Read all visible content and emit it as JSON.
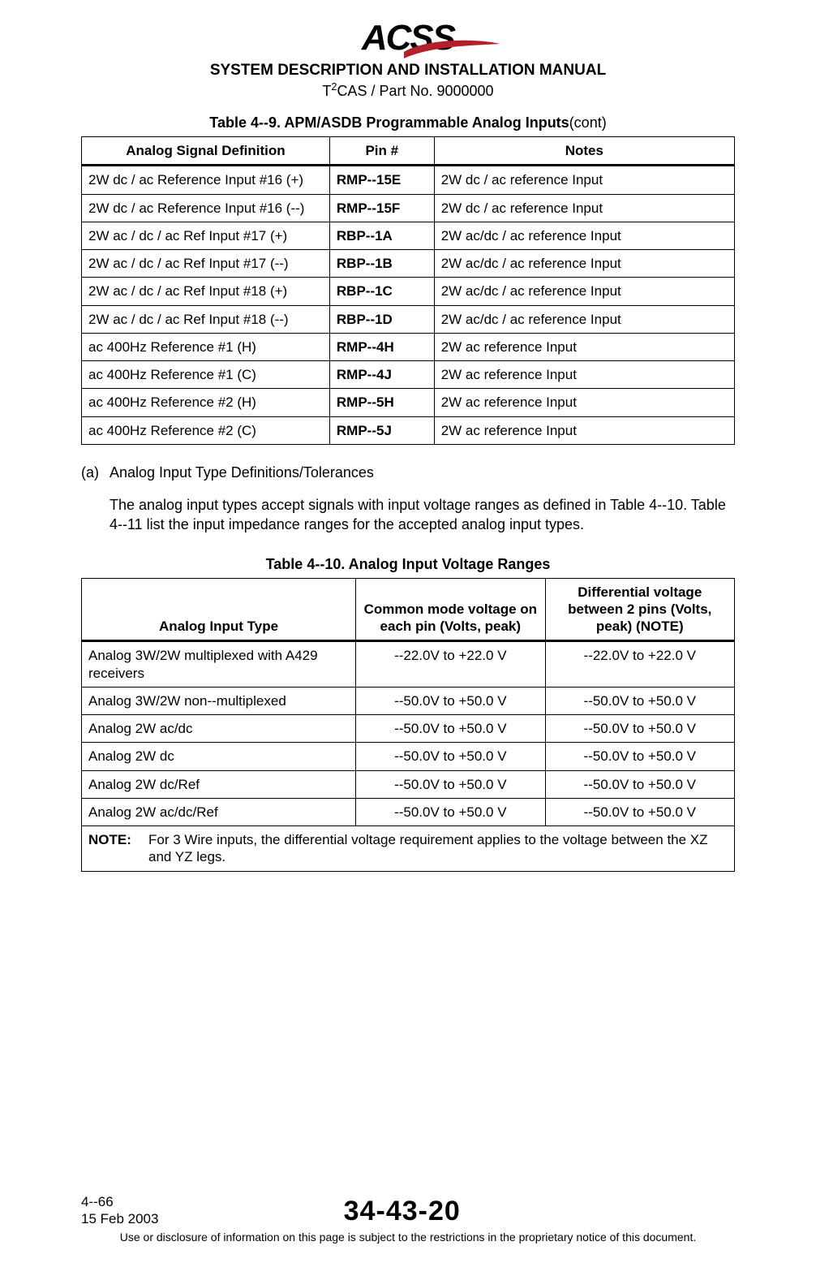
{
  "logo": {
    "text": "ACSS",
    "swoosh_color": "#b3202a"
  },
  "header": {
    "title": "SYSTEM DESCRIPTION AND INSTALLATION MANUAL",
    "product_prefix": "T",
    "product_sup": "2",
    "product_rest": "CAS / Part No. 9000000"
  },
  "table49": {
    "caption_prefix": "Table 4--9.  APM/ASDB Programmable Analog Inputs",
    "caption_suffix": "(cont)",
    "columns": [
      "Analog Signal Definition",
      "Pin #",
      "Notes"
    ],
    "rows": [
      {
        "sig": "2W dc / ac Reference Input #16 (+)",
        "pin": "RMP--15E",
        "note": "2W dc / ac reference Input"
      },
      {
        "sig": "2W dc / ac Reference Input #16 (--)",
        "pin": "RMP--15F",
        "note": "2W dc / ac reference Input"
      },
      {
        "sig": "2W ac / dc / ac Ref Input #17 (+)",
        "pin": "RBP--1A",
        "note": "2W ac/dc / ac reference Input"
      },
      {
        "sig": "2W ac / dc / ac Ref Input #17 (--)",
        "pin": "RBP--1B",
        "note": "2W ac/dc / ac reference Input"
      },
      {
        "sig": "2W ac / dc / ac Ref Input #18 (+)",
        "pin": "RBP--1C",
        "note": "2W ac/dc / ac reference Input"
      },
      {
        "sig": "2W ac / dc / ac Ref Input #18 (--)",
        "pin": "RBP--1D",
        "note": "2W ac/dc / ac reference Input"
      },
      {
        "sig": "ac 400Hz Reference #1 (H)",
        "pin": "RMP--4H",
        "note": "2W ac reference Input"
      },
      {
        "sig": "ac 400Hz Reference #1 (C)",
        "pin": "RMP--4J",
        "note": "2W ac reference Input"
      },
      {
        "sig": "ac 400Hz Reference #2 (H)",
        "pin": "RMP--5H",
        "note": "2W ac reference Input"
      },
      {
        "sig": "ac 400Hz Reference #2 (C)",
        "pin": "RMP--5J",
        "note": "2W ac reference Input"
      }
    ]
  },
  "para_a": {
    "label": "(a)",
    "heading": "Analog Input Type Definitions/Tolerances",
    "body": "The analog input types accept signals with input voltage ranges as defined in Table 4--10.  Table 4--11 list the input impedance ranges for the accepted analog input types."
  },
  "table410": {
    "caption": "Table 4--10.  Analog Input Voltage Ranges",
    "columns": [
      "Analog Input Type",
      "Common mode voltage on each pin (Volts, peak)",
      "Differential voltage between 2 pins (Volts, peak) (NOTE)"
    ],
    "rows": [
      {
        "type": "Analog 3W/2W multiplexed with A429 receivers",
        "cm": "--22.0V to +22.0 V",
        "dv": "--22.0V to +22.0 V"
      },
      {
        "type": "Analog 3W/2W non--multiplexed",
        "cm": "--50.0V to +50.0 V",
        "dv": "--50.0V to +50.0 V"
      },
      {
        "type": "Analog 2W ac/dc",
        "cm": "--50.0V to +50.0 V",
        "dv": "--50.0V to +50.0 V"
      },
      {
        "type": "Analog 2W dc",
        "cm": "--50.0V to +50.0 V",
        "dv": "--50.0V to +50.0 V"
      },
      {
        "type": "Analog 2W dc/Ref",
        "cm": "--50.0V to +50.0 V",
        "dv": "--50.0V to +50.0 V"
      },
      {
        "type": "Analog 2W ac/dc/Ref",
        "cm": "--50.0V to +50.0 V",
        "dv": "--50.0V to +50.0 V"
      }
    ],
    "note_label": "NOTE:",
    "note_text": "For 3 Wire inputs, the differential voltage requirement applies to the voltage between the XZ and YZ legs."
  },
  "footer": {
    "page": "4--66",
    "date": "15 Feb 2003",
    "docnum": "34-43-20",
    "disclaimer": "Use or disclosure of information on this page is subject to the restrictions in the proprietary notice of this document."
  }
}
